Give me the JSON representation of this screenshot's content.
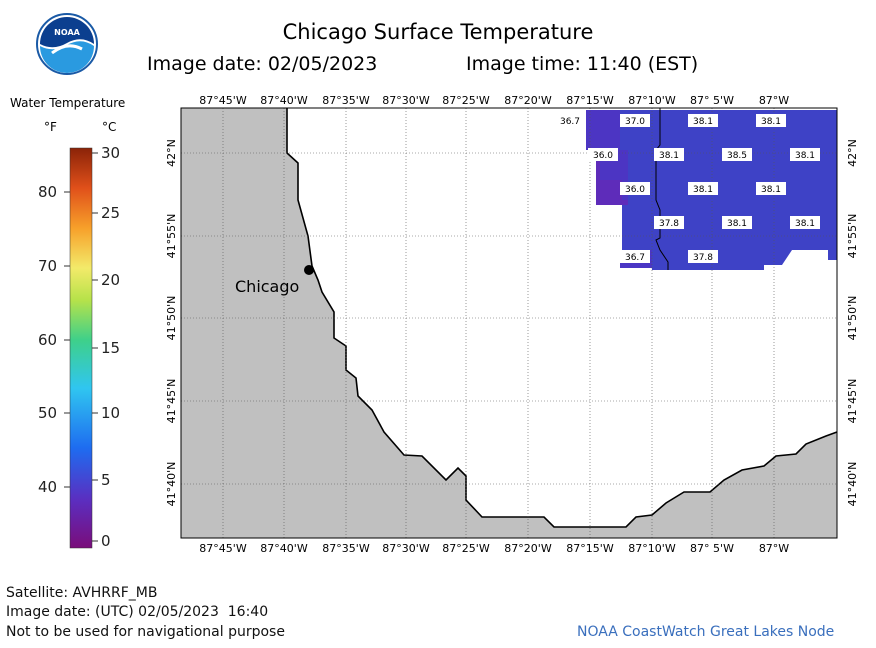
{
  "header": {
    "title": "Chicago Surface Temperature",
    "image_date": "Image date: 02/05/2023",
    "image_time": "Image time: 11:40 (EST)"
  },
  "legend": {
    "title": "Water Temperature",
    "unit_f": "°F",
    "unit_c": "°C",
    "f_ticks": [
      "80",
      "70",
      "60",
      "50",
      "40"
    ],
    "c_ticks": [
      "30",
      "25",
      "20",
      "15",
      "10",
      "5",
      "0"
    ]
  },
  "map": {
    "lon_labels": [
      "87°45'W",
      "87°40'W",
      "87°35'W",
      "87°30'W",
      "87°25'W",
      "87°20'W",
      "87°15'W",
      "87°10'W",
      "87° 5'W",
      "87°W"
    ],
    "lat_labels": [
      "42°N",
      "41°55'N",
      "41°50'N",
      "41°45'N",
      "41°40'N"
    ],
    "city_label": "Chicago",
    "water_temps_c": [
      "36.7",
      "37.0",
      "38.1",
      "38.1",
      "36.0",
      "38.1",
      "38.5",
      "38.1",
      "36.0",
      "38.1",
      "38.1",
      "37.8",
      "38.1",
      "38.1",
      "36.7",
      "37.8"
    ],
    "colors": {
      "land": "#c0c0c0",
      "water_grid": "#3d42c6",
      "water_warm": "#5231b9",
      "coast": "#000000"
    }
  },
  "footer": {
    "satellite": "Satellite: AVHRRF_MB",
    "utc_date": "Image date: (UTC) 02/05/2023  16:40",
    "disclaimer": "Not to be used for navigational purpose",
    "credit": "NOAA CoastWatch Great Lakes Node"
  }
}
